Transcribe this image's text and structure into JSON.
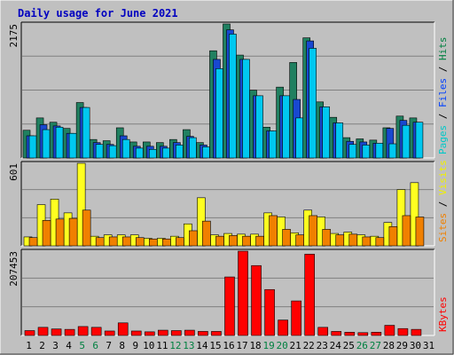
{
  "chart_data": {
    "type": "bar",
    "title": "Daily usage for June 2021",
    "categories": [
      "1",
      "2",
      "3",
      "4",
      "5",
      "6",
      "7",
      "8",
      "9",
      "10",
      "11",
      "12",
      "13",
      "14",
      "15",
      "16",
      "17",
      "18",
      "19",
      "20",
      "21",
      "22",
      "23",
      "24",
      "25",
      "26",
      "27",
      "28",
      "29",
      "30",
      "31"
    ],
    "weekend_days": [
      "5",
      "6",
      "12",
      "13",
      "19",
      "20",
      "26",
      "27"
    ],
    "panels": [
      {
        "id": "hits",
        "ymax_label": "2175",
        "ymax": 2175,
        "labels": [
          "Pages",
          "Files",
          "Hits"
        ],
        "label_colors": [
          "#00c8c8",
          "#0040ff",
          "#008040"
        ],
        "series": [
          {
            "name": "Hits",
            "color": "#208060",
            "values": [
              450,
              650,
              580,
              480,
              900,
              300,
              280,
              490,
              260,
              260,
              250,
              300,
              460,
              250,
              1740,
              2175,
              1670,
              1100,
              500,
              1150,
              1550,
              1950,
              910,
              660,
              330,
              310,
              290,
              490,
              680,
              650,
              0
            ]
          },
          {
            "name": "Files",
            "color": "#1848d0",
            "values": [
              360,
              540,
              520,
              400,
              820,
              250,
              220,
              360,
              190,
              190,
              190,
              250,
              350,
              210,
              1600,
              2080,
              1600,
              1010,
              440,
              1010,
              950,
              1900,
              830,
              570,
              270,
              260,
              240,
              480,
              610,
              580,
              0
            ]
          },
          {
            "name": "Pages",
            "color": "#00c8f0",
            "values": [
              360,
              460,
              500,
              400,
              820,
              220,
              200,
              300,
              160,
              140,
              160,
              210,
              330,
              180,
              1450,
              2010,
              1600,
              1010,
              440,
              1010,
              650,
              1780,
              830,
              570,
              220,
              210,
              240,
              230,
              530,
              580,
              0
            ]
          }
        ]
      },
      {
        "id": "visits",
        "ymax_label": "601",
        "ymax": 601,
        "labels": [
          "Sites",
          "Visits"
        ],
        "label_colors": [
          "#f08000",
          "#f0f000"
        ],
        "series": [
          {
            "name": "Visits",
            "color": "#ffff20",
            "values": [
              65,
              300,
              340,
              240,
              601,
              70,
              80,
              80,
              80,
              55,
              55,
              70,
              160,
              350,
              80,
              90,
              85,
              85,
              240,
              210,
              95,
              260,
              210,
              90,
              100,
              80,
              70,
              170,
              410,
              460,
              0
            ]
          },
          {
            "name": "Sites",
            "color": "#f08000",
            "values": [
              60,
              185,
              195,
              200,
              260,
              60,
              65,
              65,
              60,
              50,
              50,
              60,
              110,
              180,
              70,
              75,
              70,
              70,
              220,
              120,
              80,
              220,
              120,
              80,
              85,
              65,
              60,
              140,
              220,
              210,
              0
            ]
          }
        ]
      },
      {
        "id": "kbytes",
        "ymax_label": "207453",
        "ymax": 207453,
        "labels": [
          "KBytes"
        ],
        "label_colors": [
          "#ff0000"
        ],
        "series": [
          {
            "name": "KBytes",
            "color": "#ff0000",
            "values": [
              12000,
              20000,
              16000,
              15000,
              22000,
              20000,
              11000,
              31000,
              11000,
              9000,
              13000,
              12000,
              13000,
              10000,
              10000,
              144000,
              207453,
              172000,
              113000,
              38000,
              85000,
              200000,
              20000,
              10000,
              8000,
              7000,
              8000,
              25000,
              17000,
              15000,
              0
            ]
          }
        ]
      }
    ]
  }
}
